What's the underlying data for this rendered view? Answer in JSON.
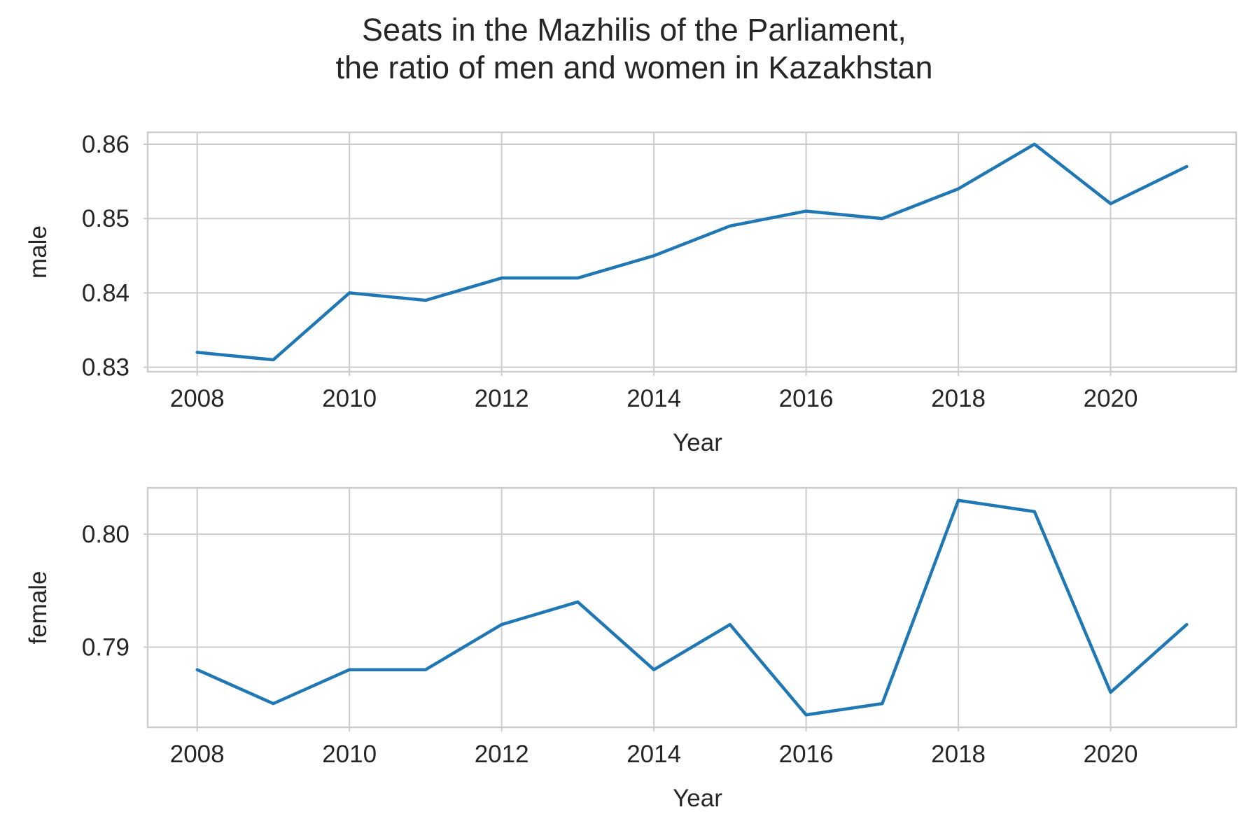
{
  "colors": {
    "series": "#1f77b4",
    "grid": "#cccccc",
    "text": "#262626"
  },
  "chart_data": {
    "type": "line",
    "title": "Seats in the Mazhilis of the Parliament,\nthe ratio of men and women in Kazakhstan",
    "title_lines": [
      "Seats in the Mazhilis of the Parliament,",
      "the ratio of men and women in Kazakhstan"
    ],
    "grid": true,
    "subplots": [
      {
        "type": "line",
        "xlabel": "Year",
        "ylabel": "male",
        "x": [
          2008,
          2009,
          2010,
          2011,
          2012,
          2013,
          2014,
          2015,
          2016,
          2017,
          2018,
          2019,
          2020,
          2021
        ],
        "values": [
          0.832,
          0.831,
          0.84,
          0.839,
          0.842,
          0.842,
          0.845,
          0.849,
          0.851,
          0.85,
          0.854,
          0.86,
          0.852,
          0.857
        ],
        "xlim": [
          2007.35,
          2021.65
        ],
        "ylim": [
          0.8294,
          0.8616
        ],
        "xticks": [
          2008,
          2010,
          2012,
          2014,
          2016,
          2018,
          2020
        ],
        "yticks": [
          0.83,
          0.84,
          0.85,
          0.86
        ],
        "ytick_labels": [
          "0.83",
          "0.84",
          "0.85",
          "0.86"
        ]
      },
      {
        "type": "line",
        "xlabel": "Year",
        "ylabel": "female",
        "x": [
          2008,
          2009,
          2010,
          2011,
          2012,
          2013,
          2014,
          2015,
          2016,
          2017,
          2018,
          2019,
          2020,
          2021
        ],
        "values": [
          0.788,
          0.785,
          0.788,
          0.788,
          0.792,
          0.794,
          0.788,
          0.792,
          0.784,
          0.785,
          0.803,
          0.802,
          0.786,
          0.792
        ],
        "xlim": [
          2007.35,
          2021.65
        ],
        "ylim": [
          0.7829,
          0.8041
        ],
        "xticks": [
          2008,
          2010,
          2012,
          2014,
          2016,
          2018,
          2020
        ],
        "yticks": [
          0.79,
          0.8
        ],
        "ytick_labels": [
          "0.79",
          "0.80"
        ]
      }
    ]
  }
}
